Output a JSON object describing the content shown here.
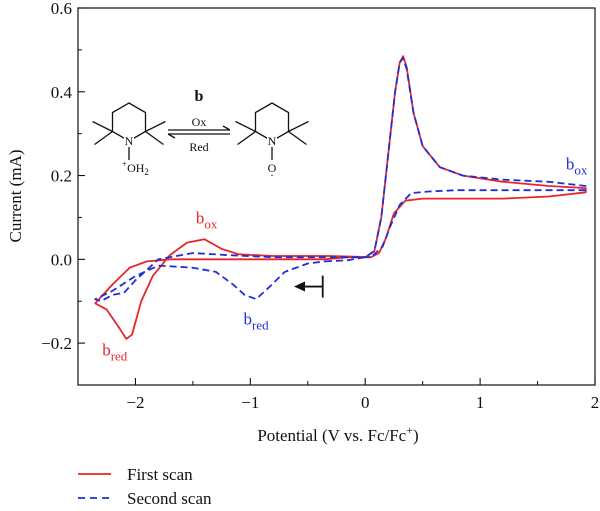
{
  "chart_data": {
    "type": "line",
    "title": "",
    "xlabel": "Potential (V vs. Fc/Fc",
    "xlabel_sup": "+",
    "xlabel_end": ")",
    "ylabel": "Current (mA)",
    "xlim": [
      -2.5,
      2.0
    ],
    "ylim": [
      -0.3,
      0.6
    ],
    "x_ticks": [
      -2,
      -1,
      0,
      1,
      2
    ],
    "x_tick_labels": [
      "−2",
      "−1",
      "0",
      "1",
      "2"
    ],
    "y_ticks": [
      -0.2,
      0.0,
      0.2,
      0.4,
      0.6
    ],
    "y_tick_labels": [
      "−0.2",
      "0.0",
      "0.2",
      "0.4",
      "0.6"
    ],
    "grid": false,
    "legend_position": "bottom-left, below plot",
    "series": [
      {
        "name": "First scan",
        "color": "#e8262a",
        "style": "solid",
        "points": [
          [
            -0.35,
            0.0
          ],
          [
            -0.15,
            0.005
          ],
          [
            0.0,
            0.005
          ],
          [
            0.08,
            0.02
          ],
          [
            0.14,
            0.1
          ],
          [
            0.2,
            0.25
          ],
          [
            0.26,
            0.4
          ],
          [
            0.3,
            0.47
          ],
          [
            0.33,
            0.485
          ],
          [
            0.36,
            0.46
          ],
          [
            0.42,
            0.35
          ],
          [
            0.5,
            0.27
          ],
          [
            0.65,
            0.22
          ],
          [
            0.85,
            0.2
          ],
          [
            1.2,
            0.185
          ],
          [
            1.6,
            0.175
          ],
          [
            1.92,
            0.17
          ],
          [
            1.92,
            0.16
          ],
          [
            1.6,
            0.15
          ],
          [
            1.2,
            0.145
          ],
          [
            0.8,
            0.145
          ],
          [
            0.5,
            0.145
          ],
          [
            0.35,
            0.14
          ],
          [
            0.25,
            0.11
          ],
          [
            0.18,
            0.05
          ],
          [
            0.12,
            0.015
          ],
          [
            0.05,
            0.005
          ],
          [
            -0.3,
            0.008
          ],
          [
            -0.8,
            0.008
          ],
          [
            -1.1,
            0.012
          ],
          [
            -1.25,
            0.025
          ],
          [
            -1.4,
            0.048
          ],
          [
            -1.55,
            0.04
          ],
          [
            -1.7,
            0.01
          ],
          [
            -1.85,
            -0.04
          ],
          [
            -1.95,
            -0.1
          ],
          [
            -2.03,
            -0.18
          ],
          [
            -2.08,
            -0.19
          ],
          [
            -2.15,
            -0.16
          ],
          [
            -2.25,
            -0.12
          ],
          [
            -2.35,
            -0.105
          ],
          [
            -2.3,
            -0.09
          ],
          [
            -2.2,
            -0.06
          ],
          [
            -2.05,
            -0.02
          ],
          [
            -1.9,
            -0.005
          ],
          [
            -1.7,
            0.0
          ],
          [
            -1.4,
            0.0
          ],
          [
            -1.1,
            0.0
          ],
          [
            -0.8,
            0.0
          ],
          [
            -0.35,
            0.0
          ]
        ]
      },
      {
        "name": "Second scan",
        "color": "#1f2fd6",
        "style": "dashed",
        "points": [
          [
            -0.35,
            -0.005
          ],
          [
            -0.15,
            -0.002
          ],
          [
            0.0,
            0.005
          ],
          [
            0.08,
            0.02
          ],
          [
            0.14,
            0.1
          ],
          [
            0.2,
            0.25
          ],
          [
            0.26,
            0.4
          ],
          [
            0.3,
            0.47
          ],
          [
            0.33,
            0.48
          ],
          [
            0.36,
            0.455
          ],
          [
            0.42,
            0.35
          ],
          [
            0.5,
            0.27
          ],
          [
            0.65,
            0.22
          ],
          [
            0.85,
            0.2
          ],
          [
            1.2,
            0.19
          ],
          [
            1.6,
            0.185
          ],
          [
            1.92,
            0.175
          ],
          [
            1.92,
            0.165
          ],
          [
            1.6,
            0.165
          ],
          [
            1.2,
            0.165
          ],
          [
            0.8,
            0.165
          ],
          [
            0.55,
            0.162
          ],
          [
            0.4,
            0.158
          ],
          [
            0.3,
            0.13
          ],
          [
            0.22,
            0.08
          ],
          [
            0.15,
            0.03
          ],
          [
            0.05,
            0.005
          ],
          [
            -0.3,
            0.005
          ],
          [
            -0.8,
            0.005
          ],
          [
            -1.2,
            0.01
          ],
          [
            -1.5,
            0.015
          ],
          [
            -1.8,
            0.0
          ],
          [
            -2.0,
            -0.05
          ],
          [
            -2.1,
            -0.08
          ],
          [
            -2.2,
            -0.085
          ],
          [
            -2.3,
            -0.1
          ],
          [
            -2.35,
            -0.095
          ],
          [
            -2.2,
            -0.075
          ],
          [
            -2.0,
            -0.04
          ],
          [
            -1.8,
            -0.015
          ],
          [
            -1.5,
            -0.02
          ],
          [
            -1.3,
            -0.03
          ],
          [
            -1.15,
            -0.06
          ],
          [
            -1.05,
            -0.085
          ],
          [
            -0.95,
            -0.095
          ],
          [
            -0.85,
            -0.07
          ],
          [
            -0.7,
            -0.03
          ],
          [
            -0.5,
            -0.01
          ],
          [
            -0.35,
            -0.005
          ]
        ]
      }
    ],
    "annotations": [
      {
        "base": "b",
        "sub": "ox",
        "x": -1.38,
        "y": 0.085,
        "color": "#e8262a"
      },
      {
        "base": "b",
        "sub": "red",
        "x": -2.18,
        "y": -0.23,
        "color": "#e8262a"
      },
      {
        "base": "b",
        "sub": "red",
        "x": -0.95,
        "y": -0.155,
        "color": "#1f2fd6"
      },
      {
        "base": "b",
        "sub": "ox",
        "x": 1.84,
        "y": 0.215,
        "color": "#1f2fd6"
      }
    ],
    "scan_start_arrow": {
      "x_start": -0.37,
      "x_end": -0.62,
      "y": -0.065,
      "direction": "left"
    },
    "inset": {
      "compound": "b",
      "arrow_top_label": "Ox",
      "arrow_bottom_label": "Red",
      "left_substituent": "OH",
      "left_substituent_sub": "2",
      "left_charge": "+",
      "right_substituent": "O",
      "right_dot": "·",
      "n_label": "N"
    }
  }
}
